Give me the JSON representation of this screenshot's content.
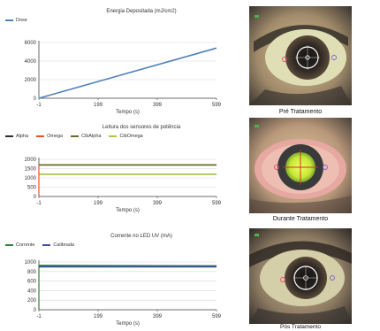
{
  "colors": {
    "dose": "#4f81bd",
    "alpha": "#2a2a3a",
    "omega": "#e2571e",
    "cibalpha": "#6b6b2a",
    "ciboemga": "#a6c94a",
    "corrente": "#2f7d3a",
    "calibrada": "#3a4fa0"
  },
  "charts": [
    {
      "title": "Energia Depositada (mJ/cm2)",
      "legend": [
        {
          "label": "Dose",
          "color": "#4f81bd"
        }
      ],
      "xlabel": "Tempo (s)",
      "yticks": [
        "0",
        "2000",
        "4000",
        "6000"
      ],
      "xticks": [
        "-1",
        "199",
        "399",
        "599"
      ]
    },
    {
      "title": "Leitura dos sensores de potência",
      "legend": [
        {
          "label": "Alpha",
          "color": "#2a2a3a"
        },
        {
          "label": "Omega",
          "color": "#e2571e"
        },
        {
          "label": "CibAlpha",
          "color": "#6b6b2a"
        },
        {
          "label": "CibOmega",
          "color": "#a6c94a"
        }
      ],
      "xlabel": "Tempo (s)",
      "yticks": [
        "0",
        "500",
        "1000",
        "1500",
        "2000"
      ],
      "xticks": [
        "-1",
        "199",
        "399",
        "599"
      ]
    },
    {
      "title": "Corrente no LED UV (mA)",
      "legend": [
        {
          "label": "Corrente",
          "color": "#2f7d3a"
        },
        {
          "label": "Calibrada",
          "color": "#3a4fa0"
        }
      ],
      "xlabel": "Tempo (s)",
      "yticks": [
        "0",
        "200",
        "400",
        "600",
        "800",
        "1000"
      ],
      "xticks": [
        "-1",
        "199",
        "399",
        "599"
      ]
    }
  ],
  "chart_data": [
    {
      "type": "line",
      "title": "Energia Depositada (mJ/cm2)",
      "xlabel": "Tempo (s)",
      "ylabel": "",
      "xlim": [
        -1,
        599
      ],
      "ylim": [
        0,
        6000
      ],
      "series": [
        {
          "name": "Dose",
          "x": [
            -1,
            599
          ],
          "y": [
            0,
            5400
          ]
        }
      ]
    },
    {
      "type": "line",
      "title": "Leitura dos sensores de potência",
      "xlabel": "Tempo (s)",
      "ylabel": "",
      "xlim": [
        -1,
        599
      ],
      "ylim": [
        0,
        2000
      ],
      "series": [
        {
          "name": "Alpha",
          "x": [
            -1,
            599
          ],
          "y": [
            1700,
            1700
          ]
        },
        {
          "name": "Omega",
          "x": [
            -1,
            599
          ],
          "y": [
            1200,
            1200
          ]
        },
        {
          "name": "CibAlpha",
          "x": [
            -1,
            599
          ],
          "y": [
            1700,
            1700
          ]
        },
        {
          "name": "CibOmega",
          "x": [
            -1,
            599
          ],
          "y": [
            1200,
            1200
          ]
        }
      ]
    },
    {
      "type": "line",
      "title": "Corrente no LED UV (mA)",
      "xlabel": "Tempo (s)",
      "ylabel": "",
      "xlim": [
        -1,
        599
      ],
      "ylim": [
        0,
        1000
      ],
      "series": [
        {
          "name": "Corrente",
          "x": [
            -1,
            599
          ],
          "y": [
            920,
            910
          ]
        },
        {
          "name": "Calibrada",
          "x": [
            -1,
            599
          ],
          "y": [
            900,
            900
          ]
        }
      ]
    }
  ],
  "photos": [
    {
      "caption": "Pré Tratamento",
      "overlay": "target-ring"
    },
    {
      "caption": "Durante Tratamento",
      "overlay": "uv-spot"
    },
    {
      "caption": "Pós Tratamento",
      "overlay": "target-ring"
    }
  ]
}
